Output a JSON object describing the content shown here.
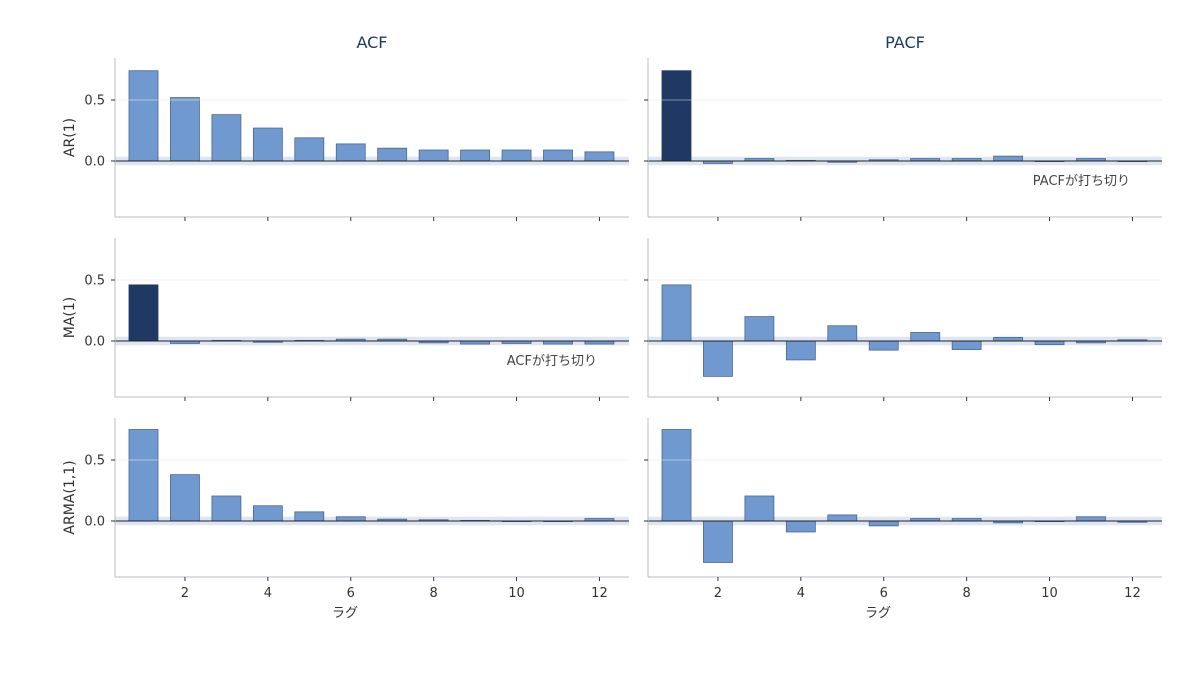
{
  "chart_data": {
    "type": "bar",
    "columns": [
      "ACF",
      "PACF"
    ],
    "rows": [
      "AR(1)",
      "MA(1)",
      "ARMA(1,1)"
    ],
    "xlabel": "ラグ",
    "lags": [
      1,
      2,
      3,
      4,
      5,
      6,
      7,
      8,
      9,
      10,
      11,
      12
    ],
    "xticks": [
      "2",
      "4",
      "6",
      "8",
      "10",
      "12"
    ],
    "yticks": [
      "0.0",
      "0.5"
    ],
    "ylim": [
      -0.45,
      0.85
    ],
    "confidence_band": [
      -0.035,
      0.035
    ],
    "grid": true,
    "colors": {
      "bar": "#7099cf",
      "highlight": "#1f3864",
      "bar_edge": "#4a6690",
      "band": "#dde6f2",
      "grid": "#e6e6e6",
      "spine": "#b8bcc8"
    },
    "panels": [
      {
        "row": "AR(1)",
        "column": "ACF",
        "values": [
          0.74,
          0.52,
          0.38,
          0.27,
          0.19,
          0.14,
          0.105,
          0.09,
          0.09,
          0.09,
          0.09,
          0.075
        ],
        "highlight": [],
        "annotation": ""
      },
      {
        "row": "AR(1)",
        "column": "PACF",
        "values": [
          0.74,
          -0.02,
          0.02,
          0.005,
          -0.01,
          0.01,
          0.02,
          0.02,
          0.04,
          0.0,
          0.02,
          -0.005
        ],
        "highlight": [
          1
        ],
        "annotation": "PACFが打ち切り"
      },
      {
        "row": "MA(1)",
        "column": "ACF",
        "values": [
          0.46,
          -0.02,
          0.005,
          -0.01,
          0.005,
          0.015,
          0.015,
          -0.015,
          -0.025,
          -0.02,
          -0.025,
          -0.025
        ],
        "highlight": [
          1
        ],
        "annotation": "ACFが打ち切り"
      },
      {
        "row": "MA(1)",
        "column": "PACF",
        "values": [
          0.46,
          -0.29,
          0.2,
          -0.155,
          0.125,
          -0.075,
          0.07,
          -0.07,
          0.03,
          -0.03,
          -0.015,
          0.01
        ],
        "highlight": [],
        "annotation": ""
      },
      {
        "row": "ARMA(1,1)",
        "column": "ACF",
        "values": [
          0.75,
          0.38,
          0.205,
          0.125,
          0.075,
          0.035,
          0.015,
          0.01,
          0.005,
          -0.005,
          0.0,
          0.02
        ],
        "highlight": [],
        "annotation": ""
      },
      {
        "row": "ARMA(1,1)",
        "column": "PACF",
        "values": [
          0.75,
          -0.34,
          0.205,
          -0.09,
          0.05,
          -0.04,
          0.02,
          0.02,
          -0.015,
          0.0,
          0.035,
          -0.01
        ],
        "highlight": [],
        "annotation": ""
      }
    ]
  }
}
